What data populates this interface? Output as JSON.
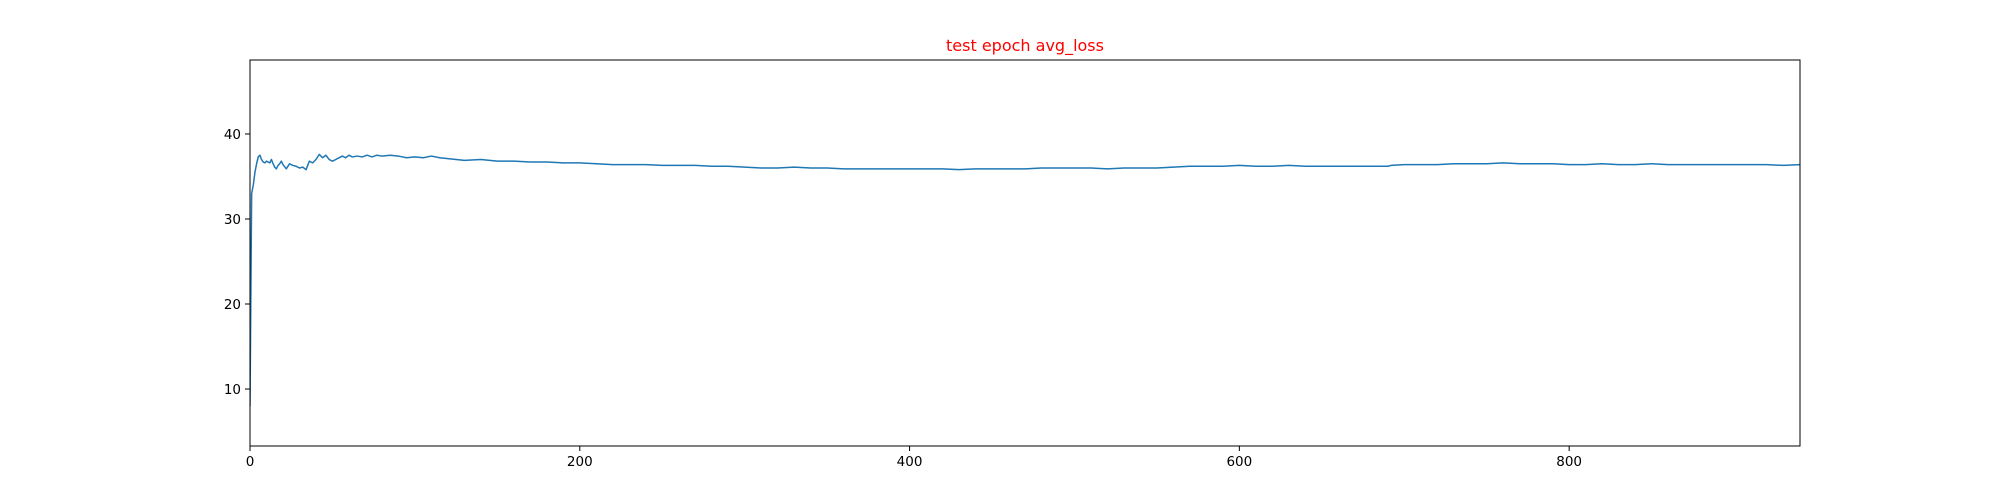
{
  "chart_data": {
    "type": "line",
    "title": "test epoch avg_loss",
    "title_color": "#ff0000",
    "xlabel": "",
    "ylabel": "",
    "xlim": [
      0,
      940
    ],
    "ylim": [
      3.3,
      48.7
    ],
    "x_ticks": [
      0,
      200,
      400,
      600,
      800
    ],
    "y_ticks": [
      10,
      20,
      30,
      40
    ],
    "grid": false,
    "legend": "none",
    "series": [
      {
        "color": "#1f77b4",
        "x": [
          0,
          1,
          2,
          3,
          4,
          5,
          6,
          7,
          8,
          9,
          10,
          11,
          12,
          13,
          14,
          15,
          16,
          17,
          18,
          19,
          20,
          22,
          24,
          26,
          28,
          30,
          32,
          34,
          36,
          38,
          40,
          42,
          44,
          46,
          48,
          50,
          52,
          54,
          56,
          58,
          60,
          62,
          65,
          68,
          71,
          74,
          77,
          80,
          85,
          90,
          95,
          100,
          105,
          110,
          115,
          120,
          130,
          140,
          150,
          160,
          170,
          180,
          190,
          200,
          210,
          220,
          230,
          240,
          250,
          260,
          270,
          280,
          290,
          300,
          310,
          320,
          330,
          340,
          350,
          360,
          370,
          380,
          390,
          400,
          410,
          420,
          430,
          440,
          450,
          460,
          470,
          480,
          490,
          500,
          510,
          520,
          530,
          540,
          550,
          560,
          570,
          580,
          590,
          600,
          610,
          620,
          630,
          640,
          650,
          660,
          670,
          680,
          690,
          692,
          700,
          710,
          720,
          730,
          740,
          750,
          760,
          770,
          780,
          790,
          800,
          810,
          820,
          830,
          840,
          850,
          860,
          870,
          880,
          890,
          900,
          910,
          920,
          930,
          940
        ],
        "y": [
          8.0,
          33.0,
          34.0,
          35.5,
          36.5,
          37.3,
          37.5,
          37.0,
          36.7,
          36.6,
          36.8,
          36.7,
          36.6,
          37.0,
          36.5,
          36.1,
          35.9,
          36.3,
          36.5,
          36.8,
          36.4,
          35.9,
          36.5,
          36.3,
          36.2,
          36.0,
          36.1,
          35.8,
          36.8,
          36.6,
          37.0,
          37.6,
          37.2,
          37.5,
          37.0,
          36.8,
          37.0,
          37.2,
          37.4,
          37.2,
          37.5,
          37.3,
          37.4,
          37.3,
          37.5,
          37.3,
          37.5,
          37.4,
          37.5,
          37.4,
          37.2,
          37.3,
          37.2,
          37.4,
          37.2,
          37.1,
          36.9,
          37.0,
          36.8,
          36.8,
          36.7,
          36.7,
          36.6,
          36.6,
          36.5,
          36.4,
          36.4,
          36.4,
          36.3,
          36.3,
          36.3,
          36.2,
          36.2,
          36.1,
          36.0,
          36.0,
          36.1,
          36.0,
          36.0,
          35.9,
          35.9,
          35.9,
          35.9,
          35.9,
          35.9,
          35.9,
          35.8,
          35.9,
          35.9,
          35.9,
          35.9,
          36.0,
          36.0,
          36.0,
          36.0,
          35.9,
          36.0,
          36.0,
          36.0,
          36.1,
          36.2,
          36.2,
          36.2,
          36.3,
          36.2,
          36.2,
          36.3,
          36.2,
          36.2,
          36.2,
          36.2,
          36.2,
          36.2,
          36.3,
          36.4,
          36.4,
          36.4,
          36.5,
          36.5,
          36.5,
          36.6,
          36.5,
          36.5,
          36.5,
          36.4,
          36.4,
          36.5,
          36.4,
          36.4,
          36.5,
          36.4,
          36.4,
          36.4,
          36.4,
          36.4,
          36.4,
          36.4,
          36.3,
          36.4
        ]
      }
    ]
  }
}
